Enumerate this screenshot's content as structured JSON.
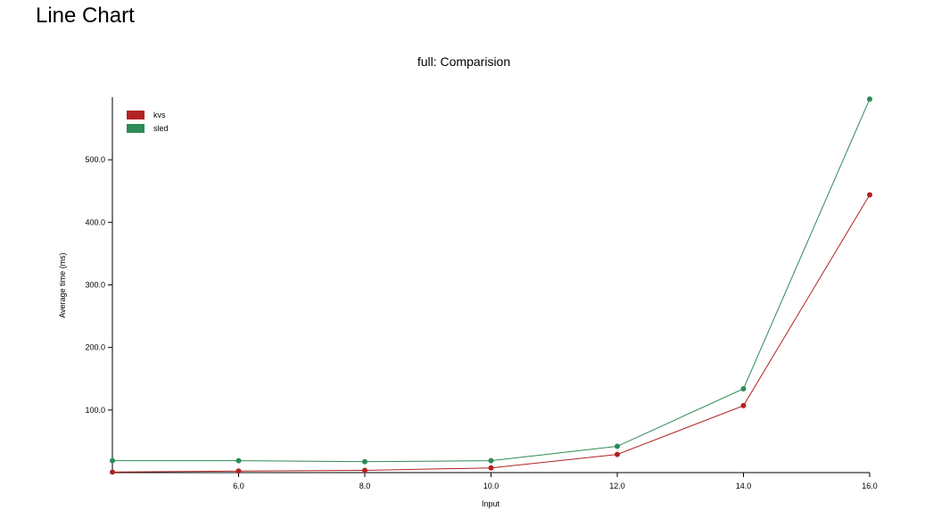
{
  "page": {
    "heading": "Line Chart"
  },
  "chart_data": {
    "type": "line",
    "title": "full: Comparision",
    "xlabel": "Input",
    "ylabel": "Average time (ms)",
    "xlim": [
      4.0,
      16.0
    ],
    "ylim": [
      0,
      600
    ],
    "x_ticks": [
      6.0,
      8.0,
      10.0,
      12.0,
      14.0,
      16.0
    ],
    "x_tick_labels": [
      "6.0",
      "8.0",
      "10.0",
      "12.0",
      "14.0",
      "16.0"
    ],
    "y_ticks": [
      100,
      200,
      300,
      400,
      500
    ],
    "y_tick_labels": [
      "100.0",
      "200.0",
      "300.0",
      "400.0",
      "500.0"
    ],
    "grid": false,
    "legend_position": "top-left",
    "x": [
      4.0,
      6.0,
      8.0,
      10.0,
      12.0,
      14.0,
      16.0
    ],
    "series": [
      {
        "name": "kvs",
        "color": "#b22222",
        "values": [
          0.8,
          2.5,
          3.5,
          7.5,
          29,
          107,
          444
        ]
      },
      {
        "name": "sled",
        "color": "#2e8b57",
        "values": [
          19,
          19,
          17.5,
          19,
          42,
          134,
          597
        ]
      }
    ]
  }
}
